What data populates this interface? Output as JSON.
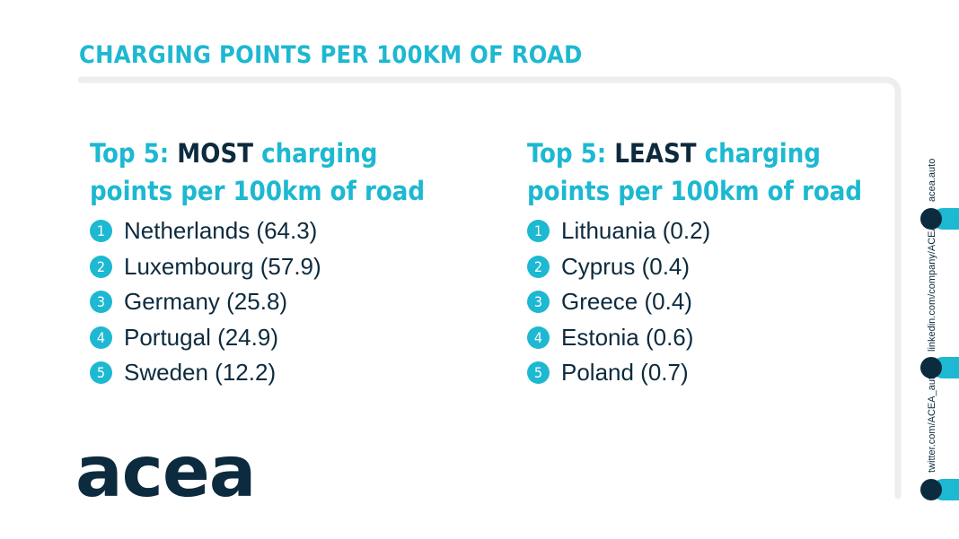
{
  "header": {
    "title": "CHARGING POINTS PER 100KM OF ROAD"
  },
  "panels": [
    {
      "heading": {
        "prefix": "Top 5: ",
        "emphasis": "MOST",
        "suffix": " charging points per 100km of road"
      },
      "items": [
        {
          "rank": "1",
          "text": "Netherlands (64.3)"
        },
        {
          "rank": "2",
          "text": "Luxembourg (57.9)"
        },
        {
          "rank": "3",
          "text": "Germany (25.8)"
        },
        {
          "rank": "4",
          "text": "Portugal (24.9)"
        },
        {
          "rank": "5",
          "text": "Sweden (12.2)"
        }
      ]
    },
    {
      "heading": {
        "prefix": "Top 5: ",
        "emphasis": "LEAST",
        "suffix": " charging points per 100km of road"
      },
      "items": [
        {
          "rank": "1",
          "text": "Lithuania (0.2)"
        },
        {
          "rank": "2",
          "text": "Cyprus (0.4)"
        },
        {
          "rank": "3",
          "text": "Greece (0.4)"
        },
        {
          "rank": "4",
          "text": "Estonia (0.6)"
        },
        {
          "rank": "5",
          "text": "Poland (0.7)"
        }
      ]
    }
  ],
  "logo": "acea",
  "social": [
    "acea.auto",
    "linkedin.com/company/ACEA/",
    "twitter.com/ACEA_auto"
  ]
}
